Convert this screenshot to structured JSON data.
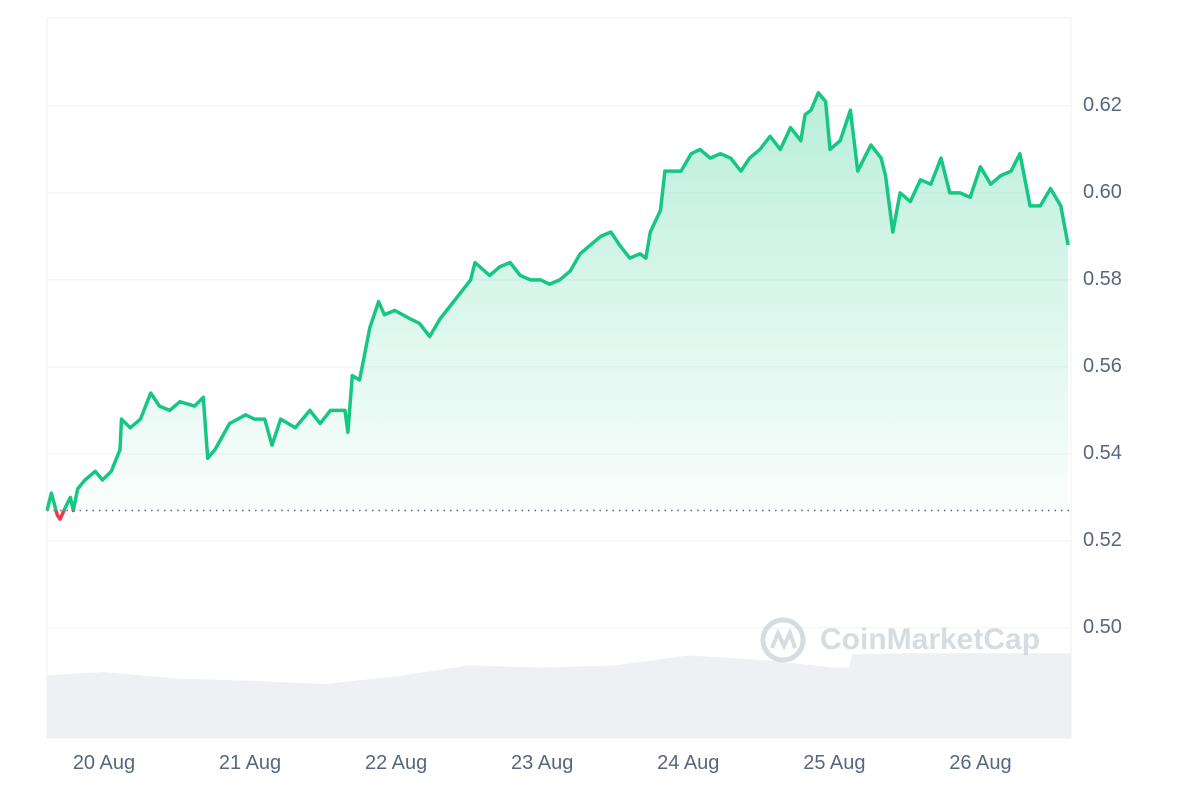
{
  "chart_data": {
    "type": "line",
    "xlim": [
      19.61,
      26.62
    ],
    "xticks": [
      {
        "value": 20,
        "label": "20 Aug"
      },
      {
        "value": 21,
        "label": "21 Aug"
      },
      {
        "value": 22,
        "label": "22 Aug"
      },
      {
        "value": 23,
        "label": "23 Aug"
      },
      {
        "value": 24,
        "label": "24 Aug"
      },
      {
        "value": 25,
        "label": "25 Aug"
      },
      {
        "value": 26,
        "label": "26 Aug"
      }
    ],
    "ylim": [
      0.4747,
      0.6402
    ],
    "yticks": [
      {
        "value": 0.5,
        "label": "0.50"
      },
      0.52,
      0.54,
      0.56,
      0.58,
      {
        "value": 0.6,
        "label": "0.60"
      },
      0.62
    ],
    "grid": true,
    "baseline": 0.527,
    "watermark": "CoinMarketCap",
    "series": [
      {
        "color": "#16c784",
        "below_color": "#ea3943",
        "x": [
          19.61,
          19.64,
          19.68,
          19.7,
          19.74,
          19.77,
          19.79,
          19.82,
          19.87,
          19.94,
          19.99,
          20.05,
          20.11,
          20.12,
          20.18,
          20.25,
          20.32,
          20.38,
          20.45,
          20.52,
          20.62,
          20.68,
          20.71,
          20.76,
          20.86,
          20.97,
          21.03,
          21.1,
          21.15,
          21.21,
          21.31,
          21.41,
          21.48,
          21.55,
          21.65,
          21.67,
          21.7,
          21.75,
          21.82,
          21.88,
          21.92,
          21.99,
          22.1,
          22.16,
          22.23,
          22.3,
          22.37,
          22.44,
          22.51,
          22.54,
          22.64,
          22.71,
          22.78,
          22.85,
          22.92,
          22.99,
          23.05,
          23.12,
          23.19,
          23.26,
          23.33,
          23.4,
          23.47,
          23.53,
          23.6,
          23.67,
          23.71,
          23.74,
          23.81,
          23.84,
          23.95,
          24.02,
          24.08,
          24.15,
          24.22,
          24.29,
          24.36,
          24.42,
          24.49,
          24.56,
          24.63,
          24.7,
          24.77,
          24.8,
          24.84,
          24.89,
          24.94,
          24.97,
          25.04,
          25.11,
          25.16,
          25.25,
          25.32,
          25.35,
          25.4,
          25.45,
          25.52,
          25.59,
          25.66,
          25.73,
          25.79,
          25.86,
          25.93,
          26.0,
          26.07,
          26.14,
          26.21,
          26.27,
          26.34,
          26.41,
          26.48,
          26.55,
          26.6
        ],
        "values": [
          0.527,
          0.531,
          0.526,
          0.525,
          0.528,
          0.53,
          0.527,
          0.532,
          0.534,
          0.536,
          0.534,
          0.536,
          0.541,
          0.548,
          0.546,
          0.548,
          0.554,
          0.551,
          0.55,
          0.552,
          0.551,
          0.553,
          0.539,
          0.541,
          0.547,
          0.549,
          0.548,
          0.548,
          0.542,
          0.548,
          0.546,
          0.55,
          0.547,
          0.55,
          0.55,
          0.545,
          0.558,
          0.557,
          0.569,
          0.575,
          0.572,
          0.573,
          0.571,
          0.57,
          0.567,
          0.571,
          0.574,
          0.577,
          0.58,
          0.584,
          0.581,
          0.583,
          0.584,
          0.581,
          0.58,
          0.58,
          0.579,
          0.58,
          0.582,
          0.586,
          0.588,
          0.59,
          0.591,
          0.588,
          0.585,
          0.586,
          0.585,
          0.591,
          0.596,
          0.605,
          0.605,
          0.609,
          0.61,
          0.608,
          0.609,
          0.608,
          0.605,
          0.608,
          0.61,
          0.613,
          0.61,
          0.615,
          0.612,
          0.618,
          0.619,
          0.623,
          0.621,
          0.61,
          0.612,
          0.619,
          0.605,
          0.611,
          0.608,
          0.604,
          0.591,
          0.6,
          0.598,
          0.603,
          0.602,
          0.608,
          0.6,
          0.6,
          0.599,
          0.606,
          0.602,
          0.604,
          0.605,
          0.609,
          0.597,
          0.597,
          0.601,
          0.597,
          0.588
        ]
      }
    ],
    "volume": {
      "color": "#eef0f3",
      "x": [
        19.61,
        20,
        20.5,
        21,
        21.5,
        22,
        22.5,
        23,
        23.5,
        24,
        24.5,
        25,
        25.1,
        25.12,
        25.5,
        26,
        26.62
      ],
      "values": [
        57,
        60,
        54,
        52,
        49,
        56,
        66,
        64,
        66,
        75,
        71,
        64,
        64,
        76,
        77,
        77,
        77
      ]
    }
  }
}
